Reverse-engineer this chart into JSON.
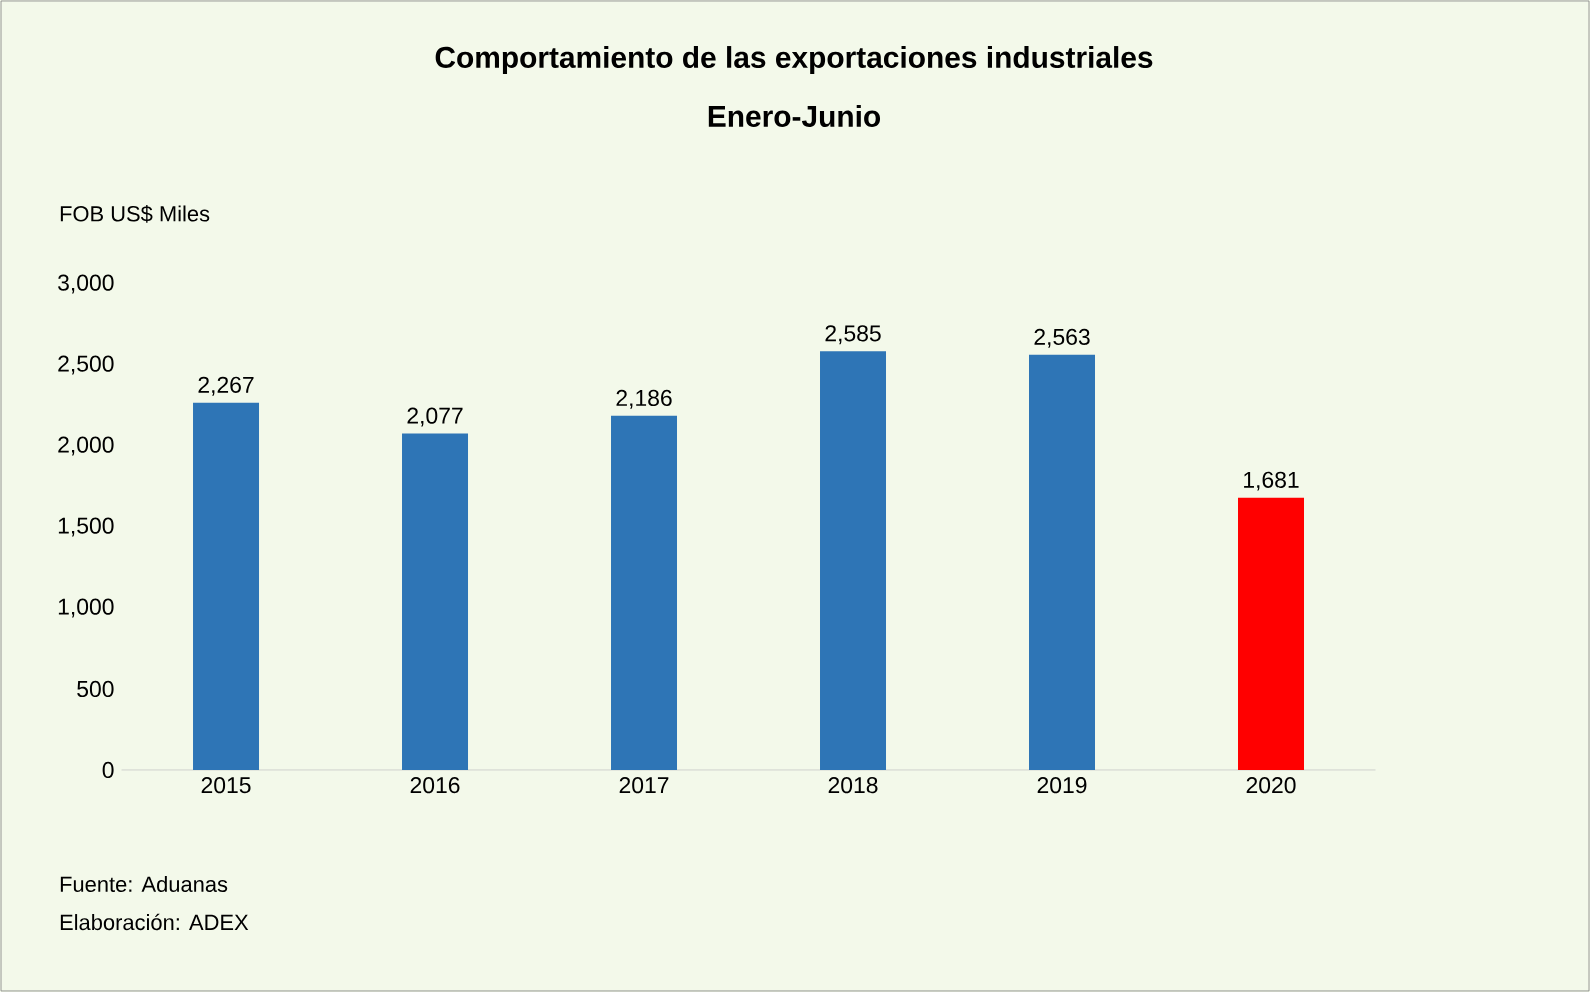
{
  "chart_data": {
    "type": "bar",
    "title": "Comportamiento de las exportaciones industriales",
    "subtitle": "Enero-Junio",
    "ylabel": "FOB US$ Miles",
    "categories": [
      "2015",
      "2016",
      "2017",
      "2018",
      "2019",
      "2020"
    ],
    "values": [
      2267,
      2077,
      2186,
      2585,
      2563,
      1681
    ],
    "value_labels": [
      "2,267",
      "2,077",
      "2,186",
      "2,585",
      "2,563",
      "1,681"
    ],
    "colors": [
      "#2e75b6",
      "#2e75b6",
      "#2e75b6",
      "#2e75b6",
      "#2e75b6",
      "#ff0000"
    ],
    "ylim": [
      0,
      3000
    ],
    "yticks": [
      0,
      500,
      {
        "value": 1000,
        "label": "1,000"
      },
      {
        "value": 1500,
        "label": "1,500"
      },
      {
        "value": 2000,
        "label": "2,000"
      },
      {
        "value": 2500,
        "label": "2,500"
      },
      {
        "value": 3000,
        "label": "3,000"
      }
    ],
    "annotations": [
      "Fuente: Aduanas",
      "Elaboración: ADEX"
    ]
  }
}
